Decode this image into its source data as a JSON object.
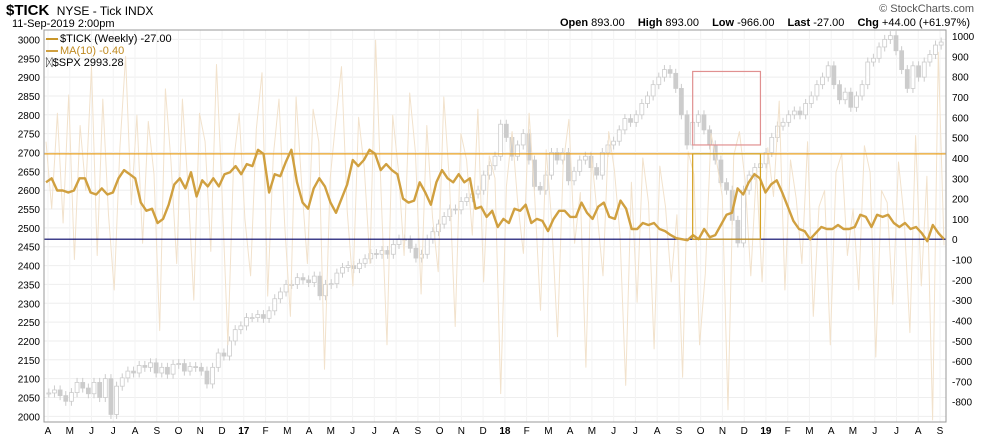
{
  "header": {
    "symbol": "$TICK",
    "name": "NYSE - Tick INDX",
    "date": "11-Sep-2019 2:00pm",
    "ohlc": [
      {
        "label": "Open",
        "value": "893.00"
      },
      {
        "label": "High",
        "value": "893.00"
      },
      {
        "label": "Low",
        "value": "-966.00"
      },
      {
        "label": "Last",
        "value": "-27.00"
      },
      {
        "label": "Chg",
        "value": "+44.00 (+61.97%)"
      }
    ],
    "brand": "© StockCharts.com"
  },
  "legend": [
    {
      "text": "$TICK (Weekly) -27.00",
      "color": "#c9962a"
    },
    {
      "text": "MA(10) -0.40",
      "color": "#d0a040"
    },
    {
      "text": "$SPX 2993.28",
      "color": "#444444"
    }
  ],
  "chart_data": {
    "type": "line",
    "x_labels": [
      "A",
      "M",
      "J",
      "J",
      "A",
      "S",
      "O",
      "N",
      "D",
      "17",
      "F",
      "M",
      "A",
      "M",
      "J",
      "J",
      "A",
      "S",
      "O",
      "N",
      "D",
      "18",
      "F",
      "M",
      "A",
      "M",
      "J",
      "J",
      "A",
      "S",
      "O",
      "N",
      "D",
      "19",
      "F",
      "M",
      "A",
      "M",
      "J",
      "J",
      "A",
      "S"
    ],
    "left_axis": {
      "ticks": [
        3000,
        2950,
        2900,
        2850,
        2800,
        2750,
        2700,
        2650,
        2600,
        2550,
        2500,
        2450,
        2400,
        2350,
        2300,
        2250,
        2200,
        2150,
        2100,
        2050,
        2000
      ],
      "range": [
        1985,
        3025
      ]
    },
    "right_axis": {
      "ticks": [
        1000,
        900,
        800,
        700,
        600,
        500,
        400,
        300,
        200,
        100,
        0,
        -100,
        -200,
        -300,
        -400,
        -500,
        -600,
        -700,
        -800
      ],
      "range": [
        -900,
        1030
      ]
    },
    "series": [
      {
        "name": "MA(10)",
        "axis": "right",
        "color": "#d0a040",
        "values": [
          280,
          300,
          240,
          240,
          230,
          240,
          300,
          300,
          230,
          220,
          250,
          220,
          230,
          300,
          340,
          320,
          300,
          180,
          140,
          150,
          80,
          100,
          170,
          270,
          300,
          250,
          330,
          210,
          290,
          260,
          300,
          260,
          320,
          330,
          360,
          320,
          370,
          360,
          440,
          420,
          230,
          320,
          310,
          380,
          440,
          280,
          180,
          150,
          250,
          300,
          260,
          180,
          130,
          200,
          270,
          390,
          360,
          390,
          440,
          420,
          340,
          370,
          340,
          320,
          200,
          180,
          190,
          280,
          230,
          170,
          280,
          340,
          300,
          280,
          320,
          280,
          300,
          150,
          160,
          110,
          140,
          60,
          100,
          80,
          150,
          140,
          170,
          80,
          100,
          90,
          40,
          100,
          140,
          140,
          110,
          110,
          180,
          130,
          100,
          160,
          180,
          110,
          100,
          190,
          150,
          50,
          50,
          80,
          70,
          80,
          50,
          40,
          20,
          5,
          0,
          -5,
          20,
          0,
          50,
          10,
          20,
          70,
          120,
          130,
          250,
          220,
          280,
          320,
          300,
          230,
          270,
          290,
          230,
          160,
          90,
          50,
          40,
          0,
          30,
          60,
          50,
          50,
          70,
          50,
          50,
          60,
          120,
          110,
          60,
          120,
          110,
          120,
          80,
          60,
          80,
          50,
          60,
          30,
          -10,
          70,
          30,
          0
        ]
      },
      {
        "name": "$TICK",
        "axis": "right",
        "color": "#f2e2cc",
        "values": [
          480,
          150,
          620,
          80,
          710,
          -100,
          560,
          240,
          850,
          -80,
          690,
          120,
          -250,
          450,
          900,
          170,
          610,
          -20,
          580,
          320,
          -450,
          740,
          380,
          -120,
          690,
          250,
          -300,
          620,
          480,
          -60,
          860,
          210,
          -520,
          380,
          620,
          100,
          -180,
          540,
          820,
          -280,
          410,
          690,
          70,
          -380,
          700,
          260,
          -120,
          640,
          480,
          -640,
          300,
          590,
          850,
          140,
          -230,
          600,
          350,
          -120,
          980,
          200,
          -520,
          610,
          340,
          -80,
          720,
          430,
          -270,
          560,
          110,
          -160,
          700,
          280,
          -430,
          520,
          390,
          20,
          640,
          -210,
          410,
          300,
          -760,
          260,
          530,
          180,
          -70,
          620,
          200,
          -350,
          440,
          80,
          -480,
          370,
          590,
          -20,
          230,
          -630,
          410,
          120,
          -180,
          530,
          340,
          20,
          -720,
          280,
          -310,
          400,
          180,
          -540,
          360,
          160,
          -210,
          120,
          -680,
          430,
          320,
          -520,
          -170,
          520,
          380,
          210,
          -840,
          410,
          530,
          290,
          -180,
          340,
          -210,
          450,
          210,
          680,
          -250,
          390,
          200,
          -120,
          480,
          -380,
          160,
          240,
          -520,
          330,
          420,
          -80,
          150,
          -250,
          460,
          330,
          -580,
          240,
          180,
          -320,
          380,
          100,
          -460,
          510,
          -230,
          310,
          -890,
          920,
          -30
        ]
      },
      {
        "name": "$SPX",
        "axis": "left",
        "color": "#cccccc",
        "values": [
          2062,
          2070,
          2055,
          2040,
          2063,
          2090,
          2075,
          2060,
          2090,
          2050,
          2100,
          2005,
          2080,
          2102,
          2120,
          2115,
          2135,
          2130,
          2142,
          2115,
          2130,
          2112,
          2138,
          2140,
          2120,
          2132,
          2130,
          2120,
          2086,
          2130,
          2168,
          2160,
          2200,
          2230,
          2240,
          2262,
          2262,
          2270,
          2260,
          2280,
          2312,
          2330,
          2350,
          2350,
          2368,
          2362,
          2355,
          2372,
          2320,
          2350,
          2352,
          2380,
          2395,
          2400,
          2392,
          2406,
          2418,
          2432,
          2430,
          2440,
          2430,
          2456,
          2470,
          2468,
          2446,
          2420,
          2430,
          2470,
          2490,
          2510,
          2530,
          2550,
          2548,
          2570,
          2580,
          2590,
          2600,
          2640,
          2665,
          2690,
          2775,
          2740,
          2690,
          2720,
          2750,
          2680,
          2610,
          2600,
          2640,
          2700,
          2680,
          2700,
          2625,
          2650,
          2680,
          2690,
          2660,
          2640,
          2700,
          2720,
          2730,
          2760,
          2790,
          2780,
          2800,
          2830,
          2850,
          2880,
          2900,
          2920,
          2910,
          2870,
          2800,
          2720,
          2780,
          2800,
          2760,
          2720,
          2680,
          2620,
          2600,
          2520,
          2460,
          2600,
          2640,
          2660,
          2670,
          2700,
          2740,
          2770,
          2780,
          2800,
          2810,
          2800,
          2830,
          2850,
          2880,
          2900,
          2930,
          2880,
          2840,
          2860,
          2820,
          2850,
          2880,
          2940,
          2950,
          2980,
          3000,
          3010,
          2970,
          2920,
          2870,
          2930,
          2900,
          2940,
          2960,
          2985,
          2993
        ]
      }
    ],
    "reference_lines": [
      {
        "y": 420,
        "axis": "right",
        "color": "#e8a020"
      },
      {
        "y": 0,
        "axis": "right",
        "color": "#000066"
      }
    ],
    "annotation_boxes": [
      {
        "from_index": 114,
        "to_index": 126,
        "y_top": 2915,
        "y_bottom": 2720,
        "axis": "left",
        "color": "#e09090"
      },
      {
        "from_index": 114,
        "to_index": 126,
        "y_top": 420,
        "y_bottom": 0,
        "axis": "right",
        "color": "#d4a020"
      }
    ]
  }
}
